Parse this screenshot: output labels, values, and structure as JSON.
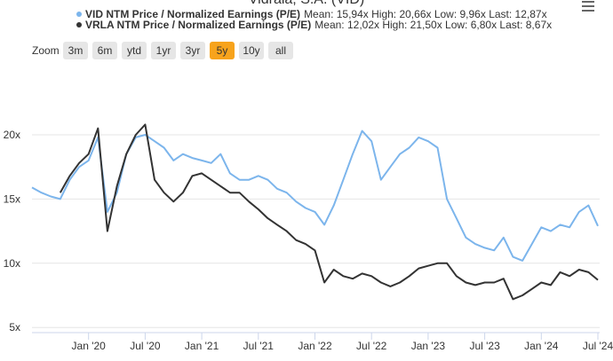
{
  "chart_data": {
    "type": "line",
    "title": "Vidrala, S.A. (VID)",
    "x": [
      "2019-07",
      "2019-08",
      "2019-09",
      "2019-10",
      "2019-11",
      "2019-12",
      "2020-01",
      "2020-02",
      "2020-03",
      "2020-04",
      "2020-05",
      "2020-06",
      "2020-07",
      "2020-08",
      "2020-09",
      "2020-10",
      "2020-11",
      "2020-12",
      "2021-01",
      "2021-02",
      "2021-03",
      "2021-04",
      "2021-05",
      "2021-06",
      "2021-07",
      "2021-08",
      "2021-09",
      "2021-10",
      "2021-11",
      "2021-12",
      "2022-01",
      "2022-02",
      "2022-03",
      "2022-04",
      "2022-05",
      "2022-06",
      "2022-07",
      "2022-08",
      "2022-09",
      "2022-10",
      "2022-11",
      "2022-12",
      "2023-01",
      "2023-02",
      "2023-03",
      "2023-04",
      "2023-05",
      "2023-06",
      "2023-07",
      "2023-08",
      "2023-09",
      "2023-10",
      "2023-11",
      "2023-12",
      "2024-01",
      "2024-02",
      "2024-03",
      "2024-04",
      "2024-05",
      "2024-06",
      "2024-07"
    ],
    "series": [
      {
        "name": "VID NTM Price / Normalized Earnings (P/E)",
        "stats": "Mean: 15,94x High: 20,66x Low: 9,96x Last: 12,87x",
        "color": "#7cb5ec",
        "values": [
          15.9,
          15.5,
          15.2,
          15.0,
          16.5,
          17.5,
          18.0,
          19.8,
          14.0,
          15.5,
          18.5,
          19.8,
          20.0,
          19.5,
          19.0,
          18.0,
          18.5,
          18.2,
          18.0,
          17.8,
          18.5,
          17.0,
          16.5,
          16.5,
          16.8,
          16.5,
          15.8,
          15.5,
          14.8,
          14.3,
          14.0,
          13.0,
          14.5,
          16.5,
          18.5,
          20.3,
          19.5,
          16.5,
          17.5,
          18.5,
          19.0,
          19.8,
          19.5,
          19.0,
          15.0,
          13.5,
          12.0,
          11.5,
          11.2,
          11.0,
          12.0,
          10.5,
          10.2,
          11.5,
          12.8,
          12.5,
          13.0,
          12.8,
          14.0,
          14.5,
          12.9
        ]
      },
      {
        "name": "VRLA NTM Price / Normalized Earnings (P/E)",
        "stats": "Mean: 12,02x High: 21,50x Low: 6,80x Last: 8,67x",
        "color": "#333333",
        "values": [
          null,
          null,
          null,
          15.5,
          16.8,
          17.8,
          18.5,
          20.5,
          12.5,
          16.0,
          18.5,
          20.0,
          20.8,
          16.5,
          15.5,
          14.8,
          15.5,
          16.8,
          17.0,
          16.5,
          16.0,
          15.5,
          15.5,
          14.8,
          14.2,
          13.5,
          13.0,
          12.5,
          11.8,
          11.5,
          11.0,
          8.5,
          9.5,
          9.0,
          8.8,
          9.2,
          9.0,
          8.5,
          8.2,
          8.5,
          9.0,
          9.6,
          9.8,
          10.0,
          10.0,
          9.0,
          8.5,
          8.3,
          8.5,
          8.5,
          8.8,
          7.2,
          7.5,
          8.0,
          8.5,
          8.3,
          9.3,
          9.0,
          9.5,
          9.3,
          8.7
        ]
      }
    ],
    "xlim": [
      "2019-07",
      "2024-07"
    ],
    "xticks": [
      {
        "value": "2020-01",
        "label": "Jan '20"
      },
      {
        "value": "2020-07",
        "label": "Jul '20"
      },
      {
        "value": "2021-01",
        "label": "Jan '21"
      },
      {
        "value": "2021-07",
        "label": "Jul '21"
      },
      {
        "value": "2022-01",
        "label": "Jan '22"
      },
      {
        "value": "2022-07",
        "label": "Jul '22"
      },
      {
        "value": "2023-01",
        "label": "Jan '23"
      },
      {
        "value": "2023-07",
        "label": "Jul '23"
      },
      {
        "value": "2024-01",
        "label": "Jan '24"
      },
      {
        "value": "2024-07",
        "label": "Jul '24"
      }
    ],
    "ylim": [
      4.6,
      23.5
    ],
    "yticks": [
      {
        "value": 5,
        "label": "5x"
      },
      {
        "value": 10,
        "label": "10x"
      },
      {
        "value": 15,
        "label": "15x"
      },
      {
        "value": 20,
        "label": "20x"
      }
    ],
    "grid": true
  },
  "range_selector": {
    "label": "Zoom",
    "buttons": [
      "3m",
      "6m",
      "ytd",
      "1yr",
      "3yr",
      "5y",
      "10y",
      "all"
    ],
    "selected": "5y"
  }
}
